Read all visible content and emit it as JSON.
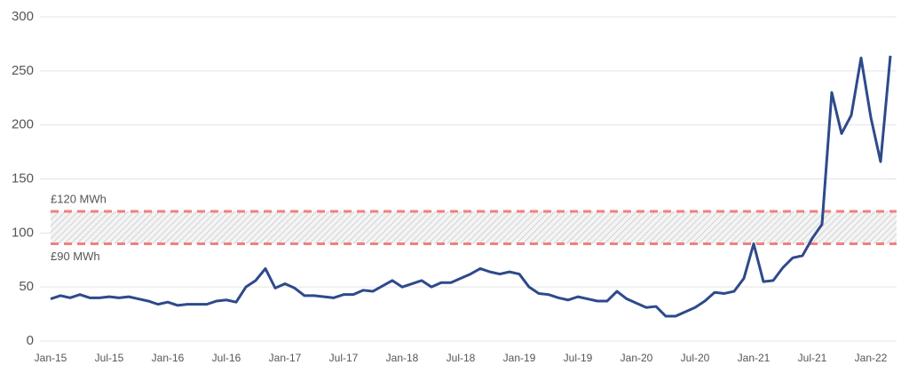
{
  "chart_data": {
    "type": "line",
    "categories": [
      "Jan-15",
      null,
      null,
      null,
      null,
      null,
      "Jul-15",
      null,
      null,
      null,
      null,
      null,
      "Jan-16",
      null,
      null,
      null,
      null,
      null,
      "Jul-16",
      null,
      null,
      null,
      null,
      null,
      "Jan-17",
      null,
      null,
      null,
      null,
      null,
      "Jul-17",
      null,
      null,
      null,
      null,
      null,
      "Jan-18",
      null,
      null,
      null,
      null,
      null,
      "Jul-18",
      null,
      null,
      null,
      null,
      null,
      "Jan-19",
      null,
      null,
      null,
      null,
      null,
      "Jul-19",
      null,
      null,
      null,
      null,
      null,
      "Jan-20",
      null,
      null,
      null,
      null,
      null,
      "Jul-20",
      null,
      null,
      null,
      null,
      null,
      "Jan-21",
      null,
      null,
      null,
      null,
      null,
      "Jul-21",
      null,
      null,
      null,
      null,
      null,
      "Jan-22",
      null,
      null
    ],
    "series": [
      {
        "color": "#2e4a8b",
        "values": [
          39,
          42,
          40,
          43,
          40,
          40,
          41,
          40,
          41,
          39,
          37,
          34,
          36,
          33,
          34,
          34,
          34,
          37,
          38,
          36,
          50,
          56,
          67,
          49,
          53,
          49,
          42,
          42,
          41,
          40,
          43,
          43,
          47,
          46,
          51,
          56,
          50,
          53,
          56,
          50,
          54,
          54,
          58,
          62,
          67,
          64,
          62,
          64,
          62,
          50,
          44,
          43,
          40,
          38,
          41,
          39,
          37,
          37,
          46,
          39,
          35,
          31,
          32,
          23,
          23,
          27,
          31,
          37,
          45,
          44,
          46,
          58,
          90,
          55,
          56,
          68,
          77,
          79,
          95,
          108,
          230,
          192,
          209,
          262,
          207,
          166,
          264
        ]
      }
    ],
    "band": [
      90,
      120
    ],
    "band_color": "#f08080",
    "annotations": [
      "£120 MWh",
      "£90 MWh"
    ],
    "ylim": [
      0,
      300
    ],
    "yticks": [
      0,
      50,
      100,
      150,
      200,
      250,
      300
    ],
    "grid": true
  }
}
